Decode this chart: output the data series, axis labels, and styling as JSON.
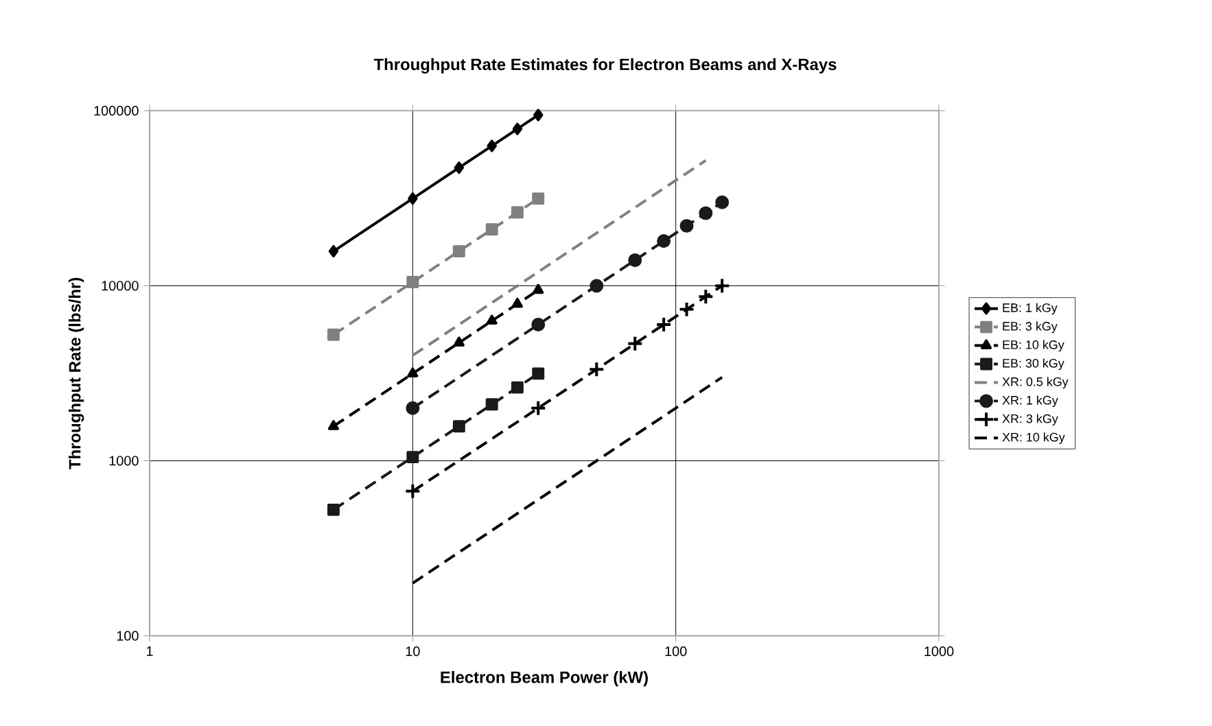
{
  "chart_data": {
    "type": "line",
    "title": "Throughput Rate Estimates for Electron Beams and X-Rays",
    "xlabel": "Electron Beam Power (kW)",
    "ylabel": "Throughput Rate (lbs/hr)",
    "log": "xy",
    "grid": true,
    "legend": "right",
    "xlim": [
      1,
      1000
    ],
    "ylim": [
      100,
      100000
    ],
    "xticks": [
      1,
      10,
      100,
      1000
    ],
    "yticks": [
      100,
      1000,
      10000,
      100000
    ],
    "series": [
      {
        "name": "EB: 1 kGy",
        "color": "#000000",
        "marker": "diamond",
        "line_style": "solid",
        "x": [
          5,
          10,
          15,
          20,
          25,
          30
        ],
        "values": [
          15750,
          31500,
          47250,
          63000,
          78750,
          94500
        ]
      },
      {
        "name": "EB: 3 kGy",
        "color": "#808080",
        "marker": "square",
        "line_style": "dashed",
        "x": [
          5,
          10,
          15,
          20,
          25,
          30
        ],
        "values": [
          5250,
          10500,
          15750,
          21000,
          26250,
          31500
        ]
      },
      {
        "name": "EB: 10 kGy",
        "color": "#000000",
        "marker": "triangle",
        "line_style": "dashed",
        "x": [
          5,
          10,
          15,
          20,
          25,
          30
        ],
        "values": [
          1575,
          3150,
          4725,
          6300,
          7875,
          9450
        ]
      },
      {
        "name": "EB: 30 kGy",
        "color": "#1a1a1a",
        "marker": "square",
        "line_style": "dashed",
        "x": [
          5,
          10,
          15,
          20,
          25,
          30
        ],
        "values": [
          525,
          1050,
          1575,
          2100,
          2625,
          3150
        ]
      },
      {
        "name": "XR: 0.5 kGy",
        "color": "#808080",
        "marker": "none",
        "line_style": "dashed",
        "x": [
          10,
          30,
          50,
          70,
          90,
          110,
          130
        ],
        "values": [
          4000,
          12000,
          20000,
          28000,
          36000,
          44000,
          52000
        ]
      },
      {
        "name": "XR: 1 kGy",
        "color": "#1a1a1a",
        "marker": "circle",
        "line_style": "dashed",
        "x": [
          10,
          30,
          50,
          70,
          90,
          110,
          130,
          150
        ],
        "values": [
          2000,
          6000,
          10000,
          14000,
          18000,
          22000,
          26000,
          30000
        ]
      },
      {
        "name": "XR: 3 kGy",
        "color": "#000000",
        "marker": "cross",
        "line_style": "dashed",
        "x": [
          10,
          30,
          50,
          70,
          90,
          110,
          130,
          150
        ],
        "values": [
          670,
          2000,
          3330,
          4670,
          6000,
          7330,
          8670,
          10000
        ]
      },
      {
        "name": "XR: 10 kGy",
        "color": "#000000",
        "marker": "none",
        "line_style": "dashed",
        "x": [
          10,
          30,
          50,
          70,
          90,
          110,
          130,
          150
        ],
        "values": [
          200,
          600,
          1000,
          1400,
          1800,
          2200,
          2600,
          3000
        ]
      }
    ]
  }
}
